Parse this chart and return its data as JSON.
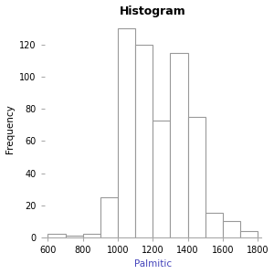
{
  "title": "Histogram",
  "xlabel": "Palmitic",
  "ylabel": "Frequency",
  "bin_edges": [
    600,
    700,
    800,
    900,
    1000,
    1100,
    1200,
    1300,
    1400,
    1500,
    1600,
    1700,
    1800
  ],
  "frequencies": [
    2,
    1,
    2,
    25,
    130,
    120,
    73,
    115,
    75,
    15,
    10,
    4
  ],
  "bar_color": "white",
  "edge_color": "#999999",
  "xlim": [
    580,
    1820
  ],
  "ylim": [
    0,
    135
  ],
  "yticks": [
    0,
    20,
    40,
    60,
    80,
    100,
    120
  ],
  "xticks": [
    600,
    800,
    1000,
    1200,
    1400,
    1600,
    1800
  ],
  "title_fontsize": 9,
  "axis_label_fontsize": 7.5,
  "tick_fontsize": 7,
  "title_fontweight": "bold",
  "xlabel_color": "#4444bb",
  "ylabel_color": "#000000",
  "title_color": "#000000",
  "background_color": "#ffffff",
  "spine_color": "#aaaaaa"
}
